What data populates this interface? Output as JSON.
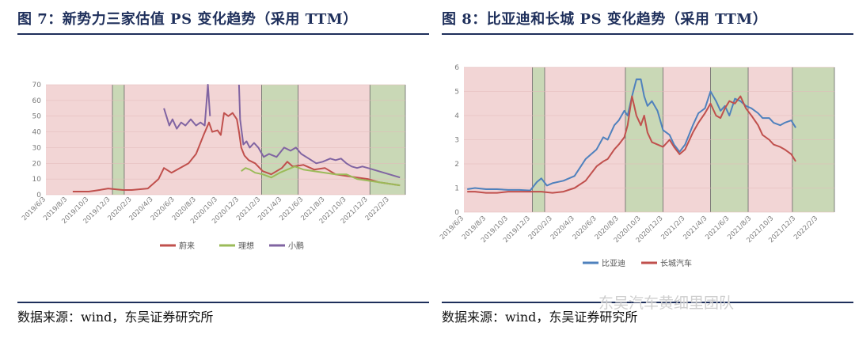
{
  "panels": [
    {
      "title": "图 7：新势力三家估值 PS 变化趋势（采用 TTM）",
      "source": "数据来源：wind，东吴证券研究所"
    },
    {
      "title": "图 8：比亚迪和长城 PS 变化趋势（采用 TTM）",
      "source": "数据来源：wind，东吴证券研究所"
    }
  ],
  "watermark": "东吴汽车黄细里团队",
  "chart_data": [
    {
      "type": "line",
      "title": "",
      "ylim": [
        0,
        70
      ],
      "yticks": [
        0,
        10,
        20,
        30,
        40,
        50,
        60,
        70
      ],
      "xlim": [
        0,
        33.5
      ],
      "xticks": [
        "2019/6/3",
        "2019/8/3",
        "2019/10/3",
        "2019/12/3",
        "2020/2/3",
        "2020/4/3",
        "2020/6/3",
        "2020/8/3",
        "2020/10/3",
        "2020/12/3",
        "2021/2/3",
        "2021/4/3",
        "2021/6/3",
        "2021/8/3",
        "2021/10/3",
        "2021/12/3",
        "2022/2/3"
      ],
      "shading": [
        {
          "from": 0,
          "to": 6.2,
          "color": "#f2d5d5"
        },
        {
          "from": 6.2,
          "to": 7.3,
          "color": "#c9d8b6"
        },
        {
          "from": 7.3,
          "to": 20.1,
          "color": "#f2d5d5"
        },
        {
          "from": 20.1,
          "to": 23.5,
          "color": "#c9d8b6"
        },
        {
          "from": 23.5,
          "to": 30.2,
          "color": "#f2d5d5"
        },
        {
          "from": 30.2,
          "to": 33.5,
          "color": "#c9d8b6"
        }
      ],
      "series": [
        {
          "name": "蔚来",
          "color": "#c0504d",
          "points": [
            [
              2.5,
              2
            ],
            [
              4,
              2
            ],
            [
              5,
              3
            ],
            [
              5.8,
              4
            ],
            [
              6.5,
              3.5
            ],
            [
              7.2,
              3
            ],
            [
              8,
              3
            ],
            [
              9.5,
              4
            ],
            [
              10.5,
              10
            ],
            [
              11,
              17
            ],
            [
              11.7,
              14
            ],
            [
              12.5,
              17
            ],
            [
              13.3,
              20
            ],
            [
              14,
              26
            ],
            [
              14.7,
              38
            ],
            [
              15.2,
              46
            ],
            [
              15.5,
              40
            ],
            [
              16,
              41
            ],
            [
              16.3,
              38
            ],
            [
              16.6,
              52
            ],
            [
              17,
              50
            ],
            [
              17.4,
              52
            ],
            [
              17.8,
              48
            ],
            [
              18,
              40
            ],
            [
              18.2,
              30
            ],
            [
              18.5,
              25
            ],
            [
              18.9,
              22
            ],
            [
              19.5,
              20
            ],
            [
              20.2,
              15
            ],
            [
              21,
              13
            ],
            [
              22,
              17
            ],
            [
              22.5,
              21
            ],
            [
              23,
              18
            ],
            [
              24,
              19
            ],
            [
              25,
              16
            ],
            [
              26,
              17
            ],
            [
              27,
              13
            ],
            [
              28,
              12
            ],
            [
              29,
              11
            ],
            [
              30,
              10
            ],
            [
              31,
              8
            ],
            [
              32,
              7
            ],
            [
              33,
              6
            ]
          ]
        },
        {
          "name": "理想",
          "color": "#9bbb59",
          "points": [
            [
              18.2,
              15
            ],
            [
              18.6,
              17
            ],
            [
              19,
              16
            ],
            [
              19.5,
              14
            ],
            [
              20.2,
              13
            ],
            [
              21,
              11
            ],
            [
              21.8,
              14
            ],
            [
              22.5,
              16
            ],
            [
              23.2,
              18
            ],
            [
              24,
              16
            ],
            [
              25,
              15
            ],
            [
              26,
              14
            ],
            [
              27,
              13
            ],
            [
              28,
              13
            ],
            [
              29,
              10
            ],
            [
              30,
              9
            ],
            [
              31,
              8
            ],
            [
              32,
              7
            ],
            [
              33,
              6
            ]
          ]
        },
        {
          "name": "小鹏",
          "color": "#8064a2",
          "points": [
            [
              11,
              55
            ],
            [
              11.5,
              44
            ],
            [
              11.8,
              48
            ],
            [
              12.2,
              42
            ],
            [
              12.6,
              46
            ],
            [
              13,
              44
            ],
            [
              13.5,
              48
            ],
            [
              14,
              44
            ],
            [
              14.4,
              46
            ],
            [
              14.8,
              44
            ],
            [
              15.1,
              70
            ],
            [
              15.3,
              50
            ]
          ]
        },
        {
          "name": "小鹏",
          "color": "#8064a2",
          "points": [
            [
              18,
              70
            ],
            [
              18.1,
              48
            ],
            [
              18.4,
              32
            ],
            [
              18.7,
              34
            ],
            [
              19,
              30
            ],
            [
              19.4,
              33
            ],
            [
              19.8,
              30
            ],
            [
              20.3,
              24
            ],
            [
              20.8,
              26
            ],
            [
              21.5,
              24
            ],
            [
              22.2,
              30
            ],
            [
              22.8,
              28
            ],
            [
              23.3,
              30
            ],
            [
              23.8,
              26
            ],
            [
              24.5,
              23
            ],
            [
              25.2,
              20
            ],
            [
              25.8,
              21
            ],
            [
              26.5,
              23
            ],
            [
              27,
              22
            ],
            [
              27.5,
              23
            ],
            [
              28,
              20
            ],
            [
              28.5,
              18
            ],
            [
              29,
              17
            ],
            [
              29.5,
              18
            ],
            [
              30,
              17
            ],
            [
              31,
              15
            ],
            [
              32,
              13
            ],
            [
              33,
              11
            ]
          ]
        }
      ],
      "legend": [
        "蔚来",
        "理想",
        "小鹏"
      ]
    },
    {
      "type": "line",
      "title": "",
      "ylim": [
        0,
        6
      ],
      "yticks": [
        0,
        1,
        2,
        3,
        4,
        5,
        6
      ],
      "xlim": [
        0,
        33.5
      ],
      "xticks": [
        "2019/6/3",
        "2019/8/3",
        "2019/10/3",
        "2019/12/3",
        "2020/2/3",
        "2020/4/3",
        "2020/6/3",
        "2020/8/3",
        "2020/10/3",
        "2020/12/3",
        "2021/2/3",
        "2021/4/3",
        "2021/6/3",
        "2021/8/3",
        "2021/10/3",
        "2021/12/3",
        "2022/2/3"
      ],
      "shading": [
        {
          "from": 0,
          "to": 6.2,
          "color": "#f2d5d5"
        },
        {
          "from": 6.2,
          "to": 7.3,
          "color": "#c9d8b6"
        },
        {
          "from": 7.3,
          "to": 14.6,
          "color": "#f2d5d5"
        },
        {
          "from": 14.6,
          "to": 18,
          "color": "#c9d8b6"
        },
        {
          "from": 18,
          "to": 22.3,
          "color": "#f2d5d5"
        },
        {
          "from": 22.3,
          "to": 25.7,
          "color": "#c9d8b6"
        },
        {
          "from": 25.7,
          "to": 29.7,
          "color": "#f2d5d5"
        },
        {
          "from": 29.7,
          "to": 33.5,
          "color": "#c9d8b6"
        }
      ],
      "series": [
        {
          "name": "比亚迪",
          "color": "#4f81bd",
          "points": [
            [
              0.3,
              0.95
            ],
            [
              1,
              1.0
            ],
            [
              2,
              0.95
            ],
            [
              3,
              0.95
            ],
            [
              4,
              0.92
            ],
            [
              5,
              0.92
            ],
            [
              6,
              0.9
            ],
            [
              6.6,
              1.25
            ],
            [
              7,
              1.4
            ],
            [
              7.5,
              1.1
            ],
            [
              8,
              1.2
            ],
            [
              9,
              1.3
            ],
            [
              10,
              1.5
            ],
            [
              11,
              2.2
            ],
            [
              12,
              2.6
            ],
            [
              12.6,
              3.1
            ],
            [
              13,
              3.0
            ],
            [
              13.6,
              3.6
            ],
            [
              14,
              3.8
            ],
            [
              14.5,
              4.2
            ],
            [
              14.8,
              4.0
            ],
            [
              15.2,
              4.8
            ],
            [
              15.6,
              5.5
            ],
            [
              16,
              5.5
            ],
            [
              16.3,
              4.8
            ],
            [
              16.6,
              4.4
            ],
            [
              17,
              4.6
            ],
            [
              17.5,
              4.2
            ],
            [
              18,
              3.4
            ],
            [
              18.6,
              3.2
            ],
            [
              19,
              2.8
            ],
            [
              19.5,
              2.5
            ],
            [
              20,
              2.8
            ],
            [
              20.7,
              3.6
            ],
            [
              21.2,
              4.1
            ],
            [
              21.8,
              4.3
            ],
            [
              22.3,
              5.0
            ],
            [
              22.8,
              4.6
            ],
            [
              23.2,
              4.2
            ],
            [
              23.6,
              4.4
            ],
            [
              24,
              4.0
            ],
            [
              24.5,
              4.7
            ],
            [
              25,
              4.6
            ],
            [
              25.5,
              4.4
            ],
            [
              26,
              4.3
            ],
            [
              26.6,
              4.1
            ],
            [
              27,
              3.9
            ],
            [
              27.6,
              3.9
            ],
            [
              28,
              3.7
            ],
            [
              28.6,
              3.6
            ],
            [
              29,
              3.7
            ],
            [
              29.6,
              3.8
            ],
            [
              30,
              3.5
            ]
          ]
        },
        {
          "name": "长城汽车",
          "color": "#c0504d",
          "points": [
            [
              0.3,
              0.85
            ],
            [
              1,
              0.85
            ],
            [
              2,
              0.8
            ],
            [
              3,
              0.8
            ],
            [
              4,
              0.85
            ],
            [
              5,
              0.85
            ],
            [
              6,
              0.85
            ],
            [
              7,
              0.85
            ],
            [
              8,
              0.8
            ],
            [
              9,
              0.85
            ],
            [
              10,
              1.0
            ],
            [
              11,
              1.3
            ],
            [
              12,
              1.9
            ],
            [
              12.6,
              2.1
            ],
            [
              13,
              2.2
            ],
            [
              13.6,
              2.6
            ],
            [
              14,
              2.8
            ],
            [
              14.5,
              3.1
            ],
            [
              14.8,
              3.6
            ],
            [
              15.2,
              4.8
            ],
            [
              15.6,
              4.0
            ],
            [
              16,
              3.6
            ],
            [
              16.3,
              4.0
            ],
            [
              16.6,
              3.3
            ],
            [
              17,
              2.9
            ],
            [
              17.5,
              2.8
            ],
            [
              18,
              2.7
            ],
            [
              18.6,
              3.0
            ],
            [
              19,
              2.7
            ],
            [
              19.5,
              2.4
            ],
            [
              20,
              2.6
            ],
            [
              20.7,
              3.3
            ],
            [
              21.2,
              3.7
            ],
            [
              21.8,
              4.1
            ],
            [
              22.3,
              4.5
            ],
            [
              22.8,
              4.0
            ],
            [
              23.2,
              3.9
            ],
            [
              23.6,
              4.3
            ],
            [
              24,
              4.6
            ],
            [
              24.5,
              4.5
            ],
            [
              25,
              4.8
            ],
            [
              25.5,
              4.3
            ],
            [
              26,
              4.0
            ],
            [
              26.6,
              3.6
            ],
            [
              27,
              3.2
            ],
            [
              27.6,
              3.0
            ],
            [
              28,
              2.8
            ],
            [
              28.6,
              2.7
            ],
            [
              29,
              2.6
            ],
            [
              29.6,
              2.4
            ],
            [
              30,
              2.1
            ]
          ]
        }
      ],
      "legend": [
        "比亚迪",
        "长城汽车"
      ]
    }
  ]
}
